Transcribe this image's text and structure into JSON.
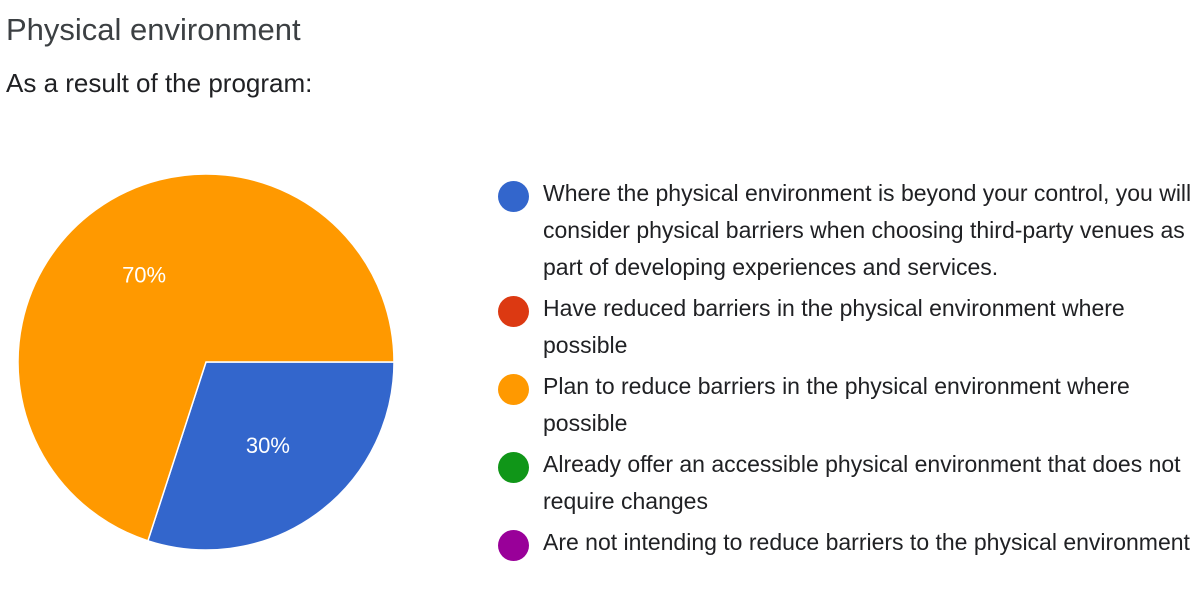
{
  "title": "Physical environment",
  "subtitle": "As a result of the program:",
  "chart_data": {
    "type": "pie",
    "title": "Physical environment",
    "subtitle": "As a result of the program:",
    "slices": [
      {
        "label": "Where the physical environment is beyond your control, you will consider physical barriers when choosing third-party venues as part of developing experiences and services.",
        "value": 30,
        "display": "30%",
        "color": "#3366cc"
      },
      {
        "label": "Have reduced barriers in the physical environment where possible",
        "value": 0,
        "display": "",
        "color": "#dc3912"
      },
      {
        "label": "Plan to reduce barriers in the physical environment where possible",
        "value": 70,
        "display": "70%",
        "color": "#ff9900"
      },
      {
        "label": "Already offer an accessible physical environment that does not require changes",
        "value": 0,
        "display": "",
        "color": "#109618"
      },
      {
        "label": "Are not intending to reduce barriers to the physical environment",
        "value": 0,
        "display": "",
        "color": "#990099"
      }
    ],
    "legend_position": "right"
  }
}
